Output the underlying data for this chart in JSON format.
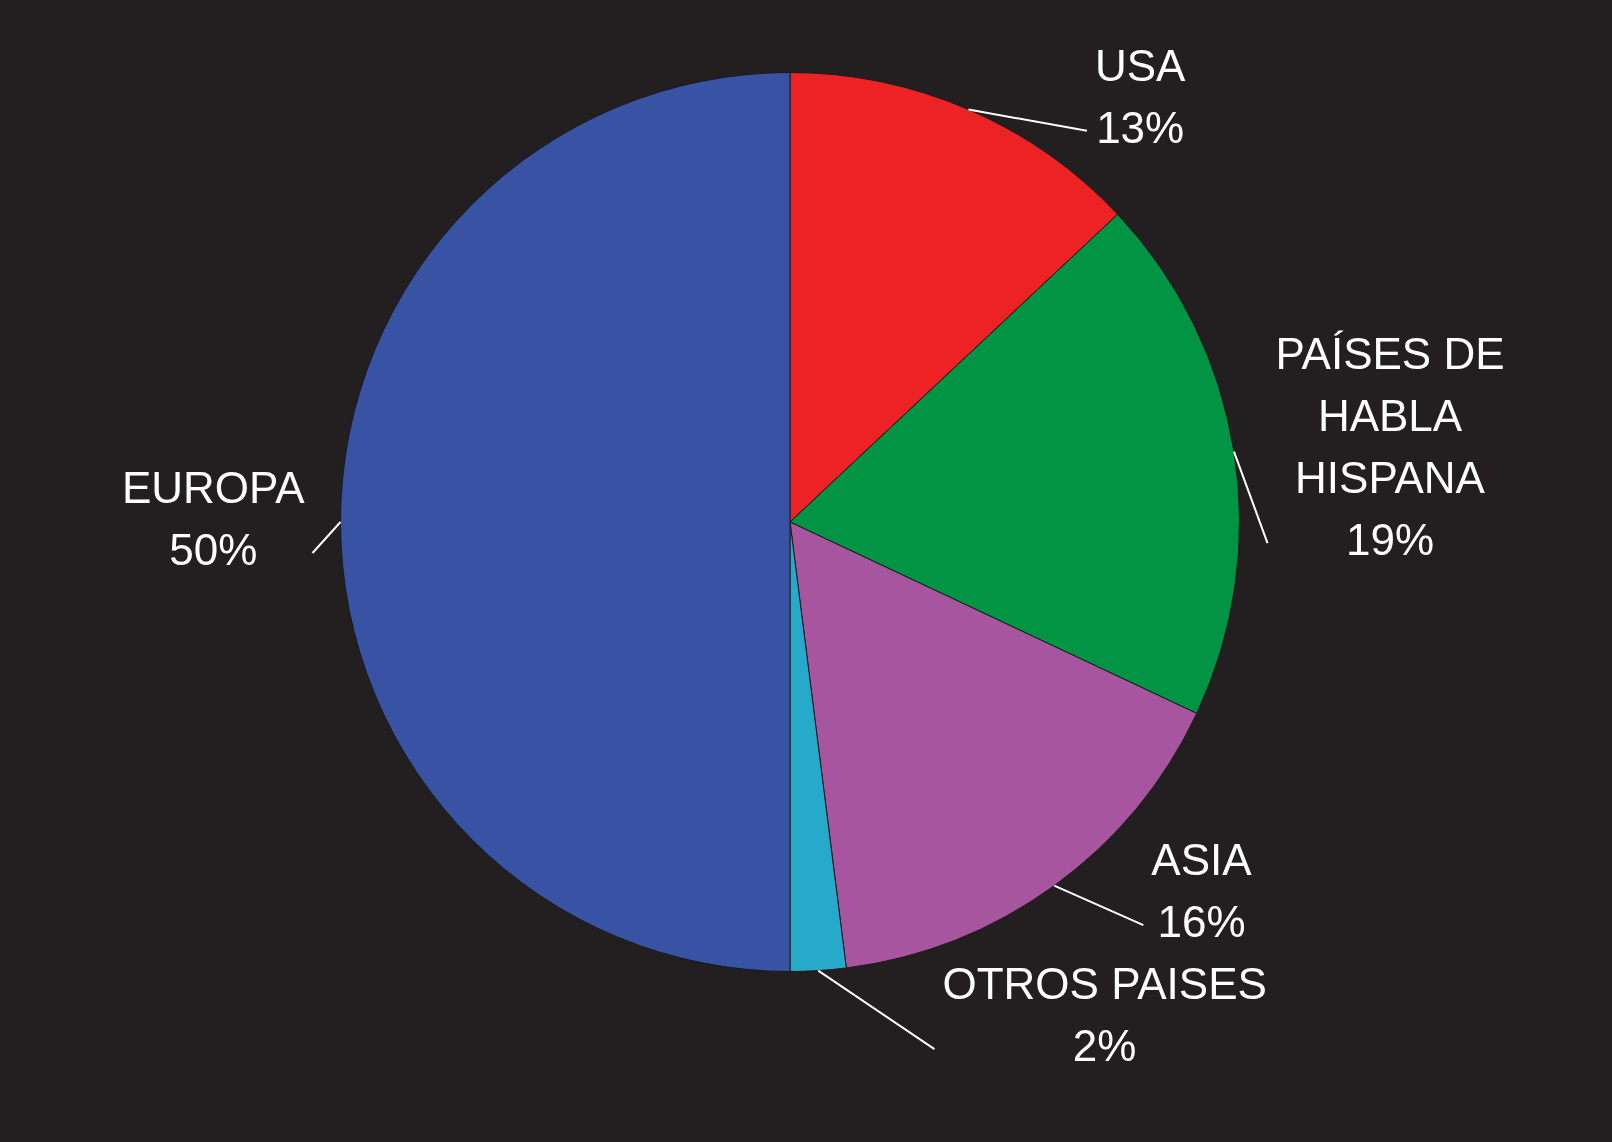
{
  "chart_data": {
    "type": "pie",
    "categories": [
      "USA",
      "PAÍSES DE HABLA HISPANA",
      "ASIA",
      "OTROS PAISES",
      "EUROPA"
    ],
    "values": [
      13,
      19,
      16,
      2,
      50
    ],
    "colors": [
      "#ed2224",
      "#009444",
      "#a855a0",
      "#27a9c9",
      "#3853a4"
    ],
    "value_labels": [
      "13%",
      "19%",
      "16%",
      "2%",
      "50%"
    ],
    "legend": false
  }
}
